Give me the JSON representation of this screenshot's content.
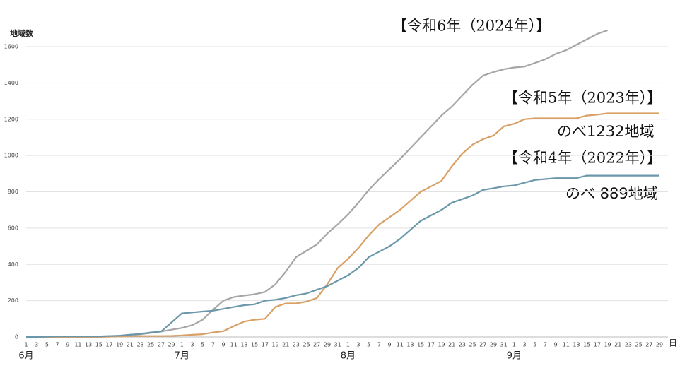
{
  "chart_data": {
    "type": "line",
    "y_axis_label": "地域数",
    "x_unit_label": "日",
    "months": [
      "6月",
      "7月",
      "8月",
      "9月"
    ],
    "categories": [
      "1",
      "3",
      "5",
      "7",
      "9",
      "11",
      "13",
      "15",
      "17",
      "19",
      "21",
      "23",
      "25",
      "27",
      "29",
      "1",
      "3",
      "5",
      "7",
      "9",
      "11",
      "13",
      "15",
      "17",
      "19",
      "21",
      "23",
      "25",
      "27",
      "29",
      "31",
      "1",
      "3",
      "5",
      "7",
      "9",
      "11",
      "13",
      "15",
      "17",
      "19",
      "21",
      "23",
      "25",
      "27",
      "29",
      "31",
      "1",
      "3",
      "5",
      "7",
      "9",
      "11",
      "13",
      "15",
      "17",
      "19",
      "21",
      "23",
      "25",
      "27",
      "29"
    ],
    "ylim": [
      0,
      1600
    ],
    "yticks": [
      0,
      200,
      400,
      600,
      800,
      1000,
      1200,
      1400,
      1600
    ],
    "grid": true,
    "series": [
      {
        "name": "【令和6年（2024年）】",
        "color": "#a6a6a6",
        "values": [
          0,
          0,
          2,
          3,
          3,
          3,
          3,
          3,
          5,
          7,
          12,
          15,
          22,
          30,
          40,
          50,
          65,
          95,
          150,
          200,
          220,
          228,
          235,
          248,
          290,
          360,
          440,
          475,
          510,
          570,
          620,
          675,
          740,
          810,
          870,
          925,
          980,
          1040,
          1100,
          1160,
          1220,
          1270,
          1330,
          1390,
          1440,
          1460,
          1475,
          1485,
          1490,
          1510,
          1530,
          1560,
          1580,
          1610,
          1640,
          1670,
          1690,
          null,
          null,
          null,
          null,
          null
        ]
      },
      {
        "name": "【令和5年（2023年）】",
        "color": "#d9a066",
        "values": [
          0,
          0,
          0,
          0,
          0,
          0,
          0,
          0,
          2,
          3,
          5,
          5,
          5,
          5,
          6,
          8,
          12,
          15,
          25,
          32,
          60,
          85,
          95,
          100,
          165,
          185,
          185,
          195,
          215,
          290,
          380,
          430,
          490,
          560,
          620,
          660,
          700,
          750,
          800,
          830,
          860,
          940,
          1010,
          1060,
          1090,
          1110,
          1160,
          1175,
          1200,
          1205,
          1205,
          1205,
          1205,
          1205,
          1220,
          1225,
          1232,
          1232,
          1232,
          1232,
          1232,
          1232
        ]
      },
      {
        "name": "【令和4年（2022年）】",
        "color": "#6b97ab",
        "values": [
          0,
          0,
          2,
          3,
          3,
          3,
          3,
          3,
          5,
          7,
          12,
          17,
          25,
          30,
          80,
          130,
          135,
          140,
          145,
          155,
          165,
          175,
          180,
          200,
          205,
          215,
          230,
          240,
          260,
          280,
          310,
          340,
          380,
          440,
          470,
          500,
          540,
          590,
          640,
          670,
          700,
          740,
          760,
          780,
          810,
          820,
          830,
          835,
          850,
          865,
          870,
          875,
          875,
          875,
          889,
          889,
          889,
          889,
          889,
          889,
          889,
          889
        ]
      }
    ],
    "annotations": [
      "のべ1232地域",
      "のべ 889地域"
    ]
  }
}
